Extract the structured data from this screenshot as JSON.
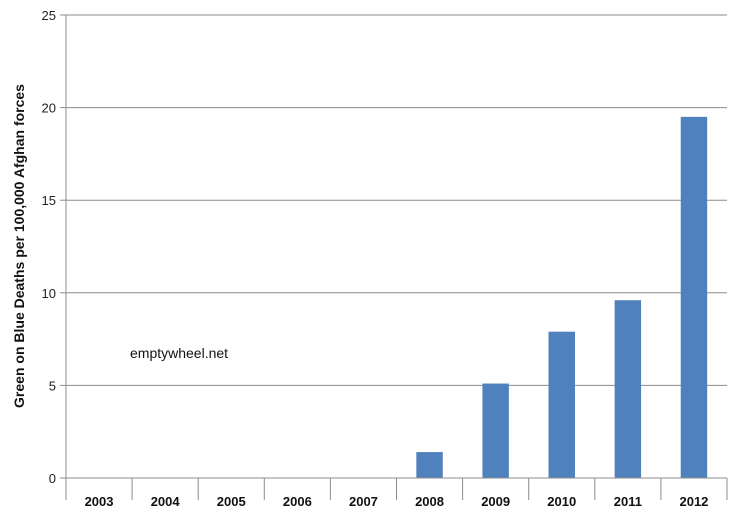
{
  "chart_data": {
    "type": "bar",
    "categories": [
      "2003",
      "2004",
      "2005",
      "2006",
      "2007",
      "2008",
      "2009",
      "2010",
      "2011",
      "2012"
    ],
    "values": [
      0,
      0,
      0,
      0,
      0,
      1.4,
      5.1,
      7.9,
      9.6,
      19.5
    ],
    "title": "",
    "xlabel": "",
    "ylabel": "Green on Blue Deaths per 100,000 Afghan forces",
    "ylim": [
      0,
      25
    ],
    "yticks": [
      0,
      5,
      10,
      15,
      20,
      25
    ],
    "grid": true,
    "bar_color": "#4f81bd",
    "annotation": "emptywheel.net"
  }
}
